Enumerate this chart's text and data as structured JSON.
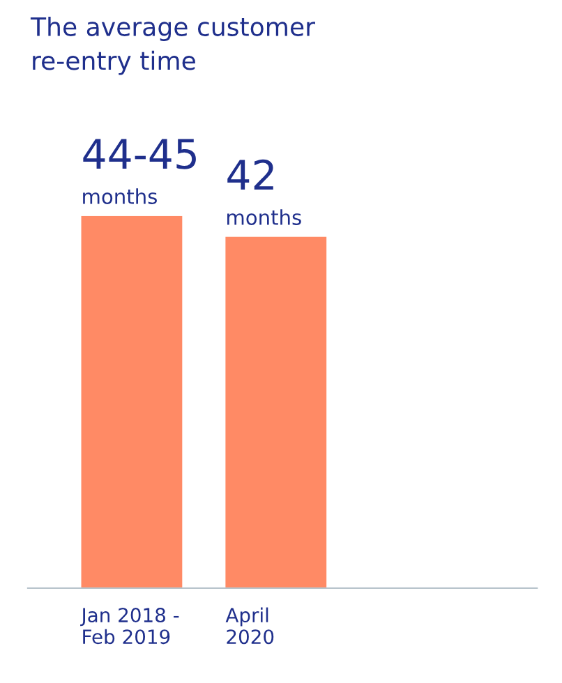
{
  "chart_data": {
    "type": "bar",
    "title": "The average customer\nre-entry time",
    "categories": [
      "Jan 2018 -\nFeb 2019",
      "April\n2020"
    ],
    "values": [
      44.5,
      42
    ],
    "value_labels": [
      "44-45",
      "42"
    ],
    "color": "#ff8a65",
    "annotations": [
      {
        "text": "months",
        "x": "Jan 2018 -\nFeb 2019",
        "y": 44.5
      },
      {
        "text": "months",
        "x": "April\n2020",
        "y": 42
      }
    ],
    "grid": false,
    "legend": false
  }
}
